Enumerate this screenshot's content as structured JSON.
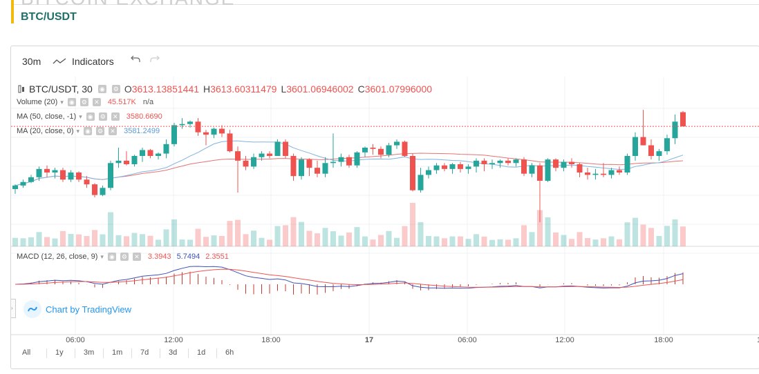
{
  "page": {
    "clipped_title": "BITCOIN EXCHANGE",
    "pair_title": "BTC/USDT"
  },
  "toolbar": {
    "interval": "30m",
    "indicators_label": "Indicators"
  },
  "legend": {
    "symbol": "BTC/USDT, 30",
    "o_key": "O",
    "o_val": "3613.13851441",
    "h_key": "H",
    "h_val": "3613.60311479",
    "l_key": "L",
    "l_val": "3601.06946002",
    "c_key": "C",
    "c_val": "3601.07996000",
    "volume_label": "Volume (20)",
    "volume_val": "45.517K",
    "volume_na": "n/a",
    "ma50_label": "MA (50, close, -1)",
    "ma50_val": "3580.6690",
    "ma20_label": "MA (20, close, 0)",
    "ma20_val": "3581.2499",
    "macd_label": "MACD (12, 26, close, 9)",
    "macd_v1": "3.3943",
    "macd_v2": "5.7494",
    "macd_v3": "2.3551"
  },
  "branding": {
    "text": "Chart by TradingView"
  },
  "time_axis": {
    "ticks": [
      "06:00",
      "12:00",
      "18:00",
      "17",
      "06:00",
      "12:00",
      "18:00",
      "1"
    ]
  },
  "range_buttons": [
    "All",
    "1y",
    "3m",
    "1m",
    "7d",
    "3d",
    "1d",
    "6h"
  ],
  "colors": {
    "up": "#26a69a",
    "down": "#ef5350",
    "ma50": "#e57373",
    "ma20": "#7fb3e0",
    "macd_line": "#3f51b5",
    "signal_line": "#ef5350",
    "accent": "#f0b90b",
    "title": "#1f6f6a"
  },
  "chart_data": {
    "type": "candlestick",
    "series_name": "BTC/USDT, 30",
    "y_range": [
      3520,
      3625
    ],
    "candles": [
      {
        "o": 3548,
        "h": 3552,
        "l": 3544,
        "c": 3551
      },
      {
        "o": 3551,
        "h": 3556,
        "l": 3549,
        "c": 3554
      },
      {
        "o": 3554,
        "h": 3560,
        "l": 3553,
        "c": 3558
      },
      {
        "o": 3558,
        "h": 3567,
        "l": 3555,
        "c": 3565
      },
      {
        "o": 3565,
        "h": 3568,
        "l": 3558,
        "c": 3562
      },
      {
        "o": 3562,
        "h": 3566,
        "l": 3557,
        "c": 3564
      },
      {
        "o": 3564,
        "h": 3566,
        "l": 3554,
        "c": 3556
      },
      {
        "o": 3556,
        "h": 3564,
        "l": 3554,
        "c": 3562
      },
      {
        "o": 3562,
        "h": 3563,
        "l": 3554,
        "c": 3556
      },
      {
        "o": 3556,
        "h": 3559,
        "l": 3549,
        "c": 3552
      },
      {
        "o": 3552,
        "h": 3553,
        "l": 3541,
        "c": 3543
      },
      {
        "o": 3543,
        "h": 3551,
        "l": 3542,
        "c": 3549
      },
      {
        "o": 3549,
        "h": 3572,
        "l": 3547,
        "c": 3570
      },
      {
        "o": 3570,
        "h": 3583,
        "l": 3566,
        "c": 3572
      },
      {
        "o": 3572,
        "h": 3580,
        "l": 3568,
        "c": 3569
      },
      {
        "o": 3569,
        "h": 3577,
        "l": 3567,
        "c": 3576
      },
      {
        "o": 3576,
        "h": 3583,
        "l": 3571,
        "c": 3581
      },
      {
        "o": 3581,
        "h": 3582,
        "l": 3574,
        "c": 3576
      },
      {
        "o": 3576,
        "h": 3579,
        "l": 3573,
        "c": 3578
      },
      {
        "o": 3578,
        "h": 3590,
        "l": 3574,
        "c": 3586
      },
      {
        "o": 3586,
        "h": 3604,
        "l": 3584,
        "c": 3602
      },
      {
        "o": 3602,
        "h": 3608,
        "l": 3599,
        "c": 3603
      },
      {
        "o": 3603,
        "h": 3606,
        "l": 3600,
        "c": 3605
      },
      {
        "o": 3605,
        "h": 3608,
        "l": 3593,
        "c": 3596
      },
      {
        "o": 3596,
        "h": 3598,
        "l": 3585,
        "c": 3594
      },
      {
        "o": 3594,
        "h": 3600,
        "l": 3591,
        "c": 3599
      },
      {
        "o": 3599,
        "h": 3602,
        "l": 3592,
        "c": 3595
      },
      {
        "o": 3595,
        "h": 3598,
        "l": 3579,
        "c": 3580
      },
      {
        "o": 3580,
        "h": 3584,
        "l": 3545,
        "c": 3572
      },
      {
        "o": 3572,
        "h": 3576,
        "l": 3564,
        "c": 3567
      },
      {
        "o": 3567,
        "h": 3578,
        "l": 3565,
        "c": 3575
      },
      {
        "o": 3575,
        "h": 3580,
        "l": 3572,
        "c": 3578
      },
      {
        "o": 3578,
        "h": 3580,
        "l": 3574,
        "c": 3576
      },
      {
        "o": 3576,
        "h": 3590,
        "l": 3576,
        "c": 3588
      },
      {
        "o": 3588,
        "h": 3590,
        "l": 3574,
        "c": 3576
      },
      {
        "o": 3576,
        "h": 3578,
        "l": 3555,
        "c": 3559
      },
      {
        "o": 3559,
        "h": 3575,
        "l": 3556,
        "c": 3573
      },
      {
        "o": 3573,
        "h": 3574,
        "l": 3559,
        "c": 3566
      },
      {
        "o": 3566,
        "h": 3572,
        "l": 3558,
        "c": 3561
      },
      {
        "o": 3561,
        "h": 3575,
        "l": 3558,
        "c": 3570
      },
      {
        "o": 3570,
        "h": 3595,
        "l": 3566,
        "c": 3571
      },
      {
        "o": 3571,
        "h": 3578,
        "l": 3567,
        "c": 3575
      },
      {
        "o": 3575,
        "h": 3577,
        "l": 3566,
        "c": 3568
      },
      {
        "o": 3568,
        "h": 3580,
        "l": 3566,
        "c": 3579
      },
      {
        "o": 3579,
        "h": 3584,
        "l": 3575,
        "c": 3583
      },
      {
        "o": 3583,
        "h": 3586,
        "l": 3577,
        "c": 3582
      },
      {
        "o": 3582,
        "h": 3584,
        "l": 3574,
        "c": 3577
      },
      {
        "o": 3577,
        "h": 3587,
        "l": 3575,
        "c": 3585
      },
      {
        "o": 3585,
        "h": 3590,
        "l": 3582,
        "c": 3588
      },
      {
        "o": 3588,
        "h": 3589,
        "l": 3575,
        "c": 3576
      },
      {
        "o": 3576,
        "h": 3578,
        "l": 3546,
        "c": 3547
      },
      {
        "o": 3547,
        "h": 3566,
        "l": 3545,
        "c": 3560
      },
      {
        "o": 3560,
        "h": 3567,
        "l": 3557,
        "c": 3564
      },
      {
        "o": 3564,
        "h": 3570,
        "l": 3561,
        "c": 3568
      },
      {
        "o": 3568,
        "h": 3570,
        "l": 3563,
        "c": 3565
      },
      {
        "o": 3565,
        "h": 3570,
        "l": 3561,
        "c": 3569
      },
      {
        "o": 3569,
        "h": 3571,
        "l": 3562,
        "c": 3565
      },
      {
        "o": 3565,
        "h": 3569,
        "l": 3561,
        "c": 3567
      },
      {
        "o": 3567,
        "h": 3574,
        "l": 3562,
        "c": 3572
      },
      {
        "o": 3572,
        "h": 3574,
        "l": 3563,
        "c": 3569
      },
      {
        "o": 3569,
        "h": 3573,
        "l": 3565,
        "c": 3570
      },
      {
        "o": 3570,
        "h": 3573,
        "l": 3566,
        "c": 3572
      },
      {
        "o": 3572,
        "h": 3574,
        "l": 3568,
        "c": 3570
      },
      {
        "o": 3570,
        "h": 3574,
        "l": 3567,
        "c": 3573
      },
      {
        "o": 3573,
        "h": 3575,
        "l": 3559,
        "c": 3561
      },
      {
        "o": 3561,
        "h": 3570,
        "l": 3558,
        "c": 3568
      },
      {
        "o": 3568,
        "h": 3570,
        "l": 3520,
        "c": 3555
      },
      {
        "o": 3555,
        "h": 3574,
        "l": 3554,
        "c": 3573
      },
      {
        "o": 3573,
        "h": 3574,
        "l": 3563,
        "c": 3566
      },
      {
        "o": 3566,
        "h": 3573,
        "l": 3563,
        "c": 3571
      },
      {
        "o": 3571,
        "h": 3574,
        "l": 3566,
        "c": 3569
      },
      {
        "o": 3569,
        "h": 3570,
        "l": 3558,
        "c": 3562
      },
      {
        "o": 3562,
        "h": 3566,
        "l": 3556,
        "c": 3560
      },
      {
        "o": 3560,
        "h": 3565,
        "l": 3556,
        "c": 3561
      },
      {
        "o": 3561,
        "h": 3570,
        "l": 3558,
        "c": 3560
      },
      {
        "o": 3560,
        "h": 3566,
        "l": 3557,
        "c": 3564
      },
      {
        "o": 3564,
        "h": 3567,
        "l": 3560,
        "c": 3562
      },
      {
        "o": 3562,
        "h": 3578,
        "l": 3560,
        "c": 3576
      },
      {
        "o": 3576,
        "h": 3596,
        "l": 3572,
        "c": 3592
      },
      {
        "o": 3592,
        "h": 3615,
        "l": 3585,
        "c": 3585
      },
      {
        "o": 3585,
        "h": 3590,
        "l": 3573,
        "c": 3576
      },
      {
        "o": 3576,
        "h": 3582,
        "l": 3572,
        "c": 3580
      },
      {
        "o": 3580,
        "h": 3594,
        "l": 3577,
        "c": 3591
      },
      {
        "o": 3591,
        "h": 3611,
        "l": 3586,
        "c": 3605
      },
      {
        "o": 3613,
        "h": 3614,
        "l": 3601,
        "c": 3601
      }
    ],
    "ma50_line": "smoothed red line near 3570–3582",
    "ma20_line": "blue line rising from 3552 to 3581",
    "x_ticks": [
      "06:00",
      "12:00",
      "18:00",
      "17",
      "06:00",
      "12:00",
      "18:00",
      "1"
    ]
  }
}
